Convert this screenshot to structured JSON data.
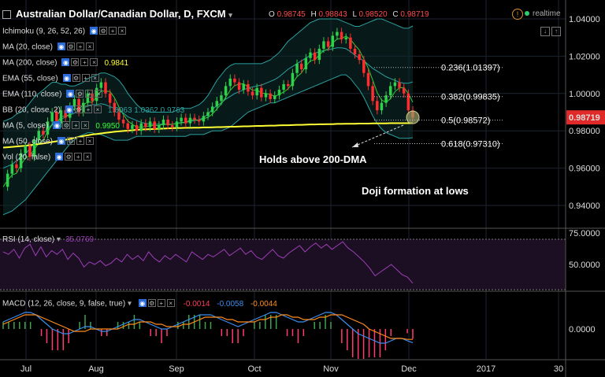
{
  "header": {
    "symbol_title": "Australian Dollar/Canadian Dollar, D, FXCM",
    "ohlc": [
      {
        "key": "O",
        "value": "0.98745"
      },
      {
        "key": "H",
        "value": "0.98843"
      },
      {
        "key": "L",
        "value": "0.98520"
      },
      {
        "key": "C",
        "value": "0.98719"
      }
    ],
    "realtime_label": "realtime"
  },
  "indicators": [
    {
      "label": "Ichimoku (9, 26, 52, 26)",
      "value": ""
    },
    {
      "label": "MA (20, close)",
      "value": ""
    },
    {
      "label": "MA (200, close)",
      "value": "0.9841",
      "color": "#ffff33"
    },
    {
      "label": "EMA (55, close)",
      "value": ""
    },
    {
      "label": "EMA (110, close)",
      "value": ""
    },
    {
      "label": "BB (20, close, 2)",
      "value": "1.0063  1.0362  0.9763",
      "color": "#2aa1a1"
    },
    {
      "label": "MA (5, close)",
      "value": "0.9950",
      "color": "#33ff33"
    },
    {
      "label": "MA (50, close)",
      "value": ""
    },
    {
      "label": "Vol (20, false)",
      "value": ""
    }
  ],
  "price_labels": {
    "last_price": "0.98719"
  },
  "annotations": {
    "support_note": "Holds above 200-DMA",
    "pattern_note": "Doji formation at lows"
  },
  "rsi_panel": {
    "label": "RSI (14, close)",
    "value": "35.0769",
    "axis_ticks": [
      "75.0000",
      "50.0000"
    ]
  },
  "macd_panel": {
    "label": "MACD (12, 26, close, 9, false, true)",
    "values": [
      "-0.0014",
      "-0.0058",
      "-0.0044"
    ],
    "axis_ticks": [
      "0.0000"
    ]
  },
  "chart_data": {
    "type": "candlestick",
    "x_ticks": [
      "Jul",
      "Aug",
      "Sep",
      "Oct",
      "Nov",
      "Dec",
      "2017",
      "30"
    ],
    "y_ticks": [
      "1.04000",
      "1.02000",
      "1.00000",
      "0.98000",
      "0.96000",
      "0.94000"
    ],
    "ylim": [
      0.9343,
      1.0425
    ],
    "last_price": 0.98719,
    "fib_levels": [
      {
        "label": "0.236(1.01397)",
        "value": 1.01397
      },
      {
        "label": "0.382(0.99835)",
        "value": 0.99835
      },
      {
        "label": "0.5(0.98572)",
        "value": 0.98572
      },
      {
        "label": "0.618(0.97310)",
        "value": 0.9731
      }
    ],
    "close_path": [
      0.95,
      0.957,
      0.962,
      0.96,
      0.968,
      0.972,
      0.966,
      0.975,
      0.98,
      0.978,
      0.985,
      0.99,
      0.984,
      0.991,
      0.987,
      0.993,
      0.997,
      0.99,
      0.995,
      1.0,
      0.996,
      1.003,
      1.006,
      1.0,
      0.995,
      0.99,
      0.986,
      0.984,
      0.981,
      0.983,
      0.98,
      0.984,
      0.982,
      0.985,
      0.981,
      0.983,
      0.986,
      0.983,
      0.982,
      0.985,
      0.987,
      0.984,
      0.987,
      0.986,
      0.985,
      0.988,
      0.99,
      0.993,
      0.996,
      0.999,
      1.004,
      1.008,
      1.006,
      1.002,
      1.005,
      1.001,
      0.999,
      1.003,
      0.998,
      1.0,
      0.997,
      0.999,
      1.002,
      1.005,
      1.004,
      1.011,
      1.016,
      1.013,
      1.019,
      1.022,
      1.018,
      1.024,
      1.028,
      1.025,
      1.031,
      1.033,
      1.029,
      1.03,
      1.024,
      1.021,
      1.018,
      1.011,
      1.004,
      0.996,
      0.991,
      0.995,
      0.999,
      1.004,
      1.006,
      1.003,
      1.0,
      0.991,
      0.9872
    ],
    "ma200": [
      0.971,
      0.9712,
      0.9714,
      0.9716,
      0.9718,
      0.972,
      0.9723,
      0.9726,
      0.9729,
      0.9732,
      0.9736,
      0.974,
      0.9744,
      0.9748,
      0.9752,
      0.9757,
      0.9762,
      0.9767,
      0.9772,
      0.9776,
      0.978,
      0.9783,
      0.9786,
      0.9789,
      0.9792,
      0.9795,
      0.9797,
      0.9799,
      0.9801,
      0.9803,
      0.9805,
      0.9807,
      0.9808,
      0.9809,
      0.981,
      0.9811,
      0.9812,
      0.9813,
      0.9814,
      0.9815,
      0.9815,
      0.9816,
      0.9816,
      0.9817,
      0.9817,
      0.9818,
      0.9818,
      0.9819,
      0.982,
      0.982,
      0.9821,
      0.9822,
      0.9822,
      0.9823,
      0.9824,
      0.9824,
      0.9825,
      0.9826,
      0.9826,
      0.9827,
      0.9828,
      0.9828,
      0.9829,
      0.983,
      0.983,
      0.9831,
      0.9832,
      0.9832,
      0.9833,
      0.9834,
      0.9834,
      0.9835,
      0.9835,
      0.9836,
      0.9836,
      0.9837,
      0.9837,
      0.9838,
      0.9838,
      0.9838,
      0.9839,
      0.9839,
      0.9839,
      0.984,
      0.984,
      0.984,
      0.984,
      0.9841,
      0.9841,
      0.9841,
      0.9841,
      0.9841,
      0.9841
    ],
    "bb_upper": [
      0.985,
      0.986,
      0.987,
      0.989,
      0.99,
      0.992,
      0.995,
      0.998,
      1.0,
      1.002,
      1.004,
      1.006,
      1.006,
      1.005,
      1.005,
      1.004,
      1.004,
      1.005,
      1.006,
      1.008,
      1.009,
      1.01,
      1.011,
      1.011,
      1.01,
      1.009,
      1.007,
      1.004,
      1.0,
      0.997,
      0.994,
      0.992,
      0.991,
      0.99,
      0.99,
      0.99,
      0.99,
      0.99,
      0.99,
      0.991,
      0.992,
      0.992,
      0.992,
      0.993,
      0.994,
      0.996,
      0.999,
      1.003,
      1.007,
      1.01,
      1.013,
      1.015,
      1.016,
      1.016,
      1.016,
      1.016,
      1.016,
      1.016,
      1.016,
      1.017,
      1.018,
      1.02,
      1.022,
      1.025,
      1.028,
      1.03,
      1.032,
      1.034,
      1.036,
      1.038,
      1.039,
      1.04,
      1.04,
      1.04,
      1.04,
      1.04,
      1.039,
      1.038,
      1.037,
      1.036,
      1.036,
      1.037,
      1.038,
      1.039,
      1.04,
      1.04,
      1.039,
      1.038,
      1.037,
      1.036,
      1.035,
      1.035,
      1.0362
    ],
    "bb_lower": [
      0.935,
      0.936,
      0.937,
      0.939,
      0.941,
      0.943,
      0.946,
      0.949,
      0.952,
      0.955,
      0.958,
      0.961,
      0.964,
      0.967,
      0.97,
      0.973,
      0.975,
      0.977,
      0.978,
      0.979,
      0.979,
      0.978,
      0.978,
      0.977,
      0.976,
      0.975,
      0.975,
      0.975,
      0.975,
      0.976,
      0.977,
      0.977,
      0.977,
      0.977,
      0.977,
      0.977,
      0.977,
      0.977,
      0.977,
      0.977,
      0.977,
      0.977,
      0.978,
      0.978,
      0.978,
      0.978,
      0.979,
      0.98,
      0.98,
      0.98,
      0.981,
      0.982,
      0.984,
      0.986,
      0.988,
      0.99,
      0.991,
      0.992,
      0.993,
      0.994,
      0.995,
      0.995,
      0.996,
      0.997,
      0.998,
      0.999,
      1.0,
      1.001,
      1.002,
      1.003,
      1.004,
      1.005,
      1.006,
      1.007,
      1.008,
      1.009,
      1.01,
      1.01,
      1.008,
      1.005,
      1.002,
      0.998,
      0.993,
      0.988,
      0.984,
      0.981,
      0.979,
      0.978,
      0.977,
      0.976,
      0.976,
      0.976,
      0.9763
    ],
    "rsi": [
      60,
      58,
      62,
      55,
      63,
      66,
      57,
      64,
      56,
      61,
      58,
      62,
      54,
      59,
      55,
      48,
      52,
      50,
      53,
      49,
      51,
      55,
      52,
      58,
      54,
      57,
      53,
      60,
      55,
      52,
      57,
      54,
      58,
      55,
      52,
      60,
      57,
      54,
      58,
      56,
      59,
      62,
      57,
      60,
      63,
      58,
      61,
      56,
      54,
      58,
      62,
      57,
      55,
      59,
      62,
      65,
      60,
      64,
      67,
      63,
      66,
      62,
      65,
      68,
      63,
      60,
      56,
      52,
      47,
      41,
      44,
      47,
      50,
      46,
      42,
      40,
      35.08
    ],
    "macd_line": [
      0.003,
      0.004,
      0.005,
      0.006,
      0.007,
      0.007,
      0.006,
      0.004,
      0.002,
      0.0,
      -0.001,
      -0.002,
      -0.002,
      -0.001,
      0.0,
      0.001,
      0.001,
      0.0,
      -0.001,
      -0.001,
      0.0,
      0.001,
      0.002,
      0.003,
      0.004,
      0.004,
      0.003,
      0.002,
      0.001,
      0.0,
      0.0,
      0.001,
      0.002,
      0.003,
      0.004,
      0.005,
      0.006,
      0.006,
      0.006,
      0.005,
      0.004,
      0.003,
      0.002,
      0.001,
      0.002,
      0.003,
      0.004,
      0.005,
      0.006,
      0.007,
      0.007,
      0.006,
      0.005,
      0.004,
      0.003,
      0.003,
      0.004,
      0.005,
      0.006,
      0.007,
      0.007,
      0.006,
      0.004,
      0.002,
      0.0,
      -0.002,
      -0.003,
      -0.004,
      -0.005,
      -0.006,
      -0.006,
      -0.005,
      -0.004,
      -0.004,
      -0.005,
      -0.0058
    ],
    "macd_signal": [
      0.002,
      0.003,
      0.004,
      0.005,
      0.006,
      0.006,
      0.006,
      0.005,
      0.004,
      0.003,
      0.002,
      0.001,
      0.0,
      -0.001,
      -0.001,
      -0.001,
      0.0,
      0.0,
      0.0,
      0.0,
      0.0,
      0.0,
      0.001,
      0.002,
      0.002,
      0.003,
      0.003,
      0.003,
      0.002,
      0.002,
      0.001,
      0.001,
      0.001,
      0.002,
      0.002,
      0.003,
      0.004,
      0.005,
      0.005,
      0.005,
      0.005,
      0.004,
      0.004,
      0.003,
      0.003,
      0.003,
      0.003,
      0.004,
      0.004,
      0.005,
      0.005,
      0.006,
      0.006,
      0.005,
      0.005,
      0.004,
      0.004,
      0.004,
      0.005,
      0.005,
      0.006,
      0.006,
      0.006,
      0.005,
      0.004,
      0.003,
      0.002,
      0.0,
      -0.001,
      -0.002,
      -0.003,
      -0.004,
      -0.004,
      -0.004,
      -0.0044,
      -0.0044
    ]
  }
}
